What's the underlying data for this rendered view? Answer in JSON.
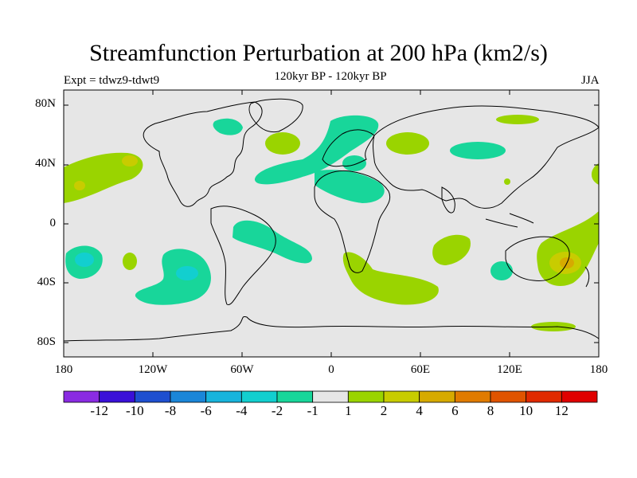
{
  "title": "Streamfunction Perturbation at 200 hPa (km2/s)",
  "subtitle": "120kyr BP - 120kyr BP",
  "experiment": "Expt = tdwz9-tdwt9",
  "season": "JJA",
  "map": {
    "background_color": "#e6e6e6",
    "coastline_color": "#000000",
    "lat_labels": [
      "80N",
      "40N",
      "0",
      "40S",
      "80S"
    ],
    "lon_labels": [
      "180",
      "120W",
      "60W",
      "0",
      "60E",
      "120E",
      "180"
    ]
  },
  "colorbar": {
    "labels": [
      "-12",
      "-10",
      "-8",
      "-6",
      "-4",
      "-2",
      "-1",
      "1",
      "2",
      "4",
      "6",
      "8",
      "10",
      "12"
    ],
    "colors": [
      "#8a2be2",
      "#3a10d8",
      "#1e4fd0",
      "#1a86d8",
      "#18b4dc",
      "#12cfcf",
      "#18d69a",
      "#e6e6e6",
      "#9ad400",
      "#c8cc00",
      "#d6aa00",
      "#e07b00",
      "#e05400",
      "#e02a00",
      "#e00000"
    ]
  }
}
